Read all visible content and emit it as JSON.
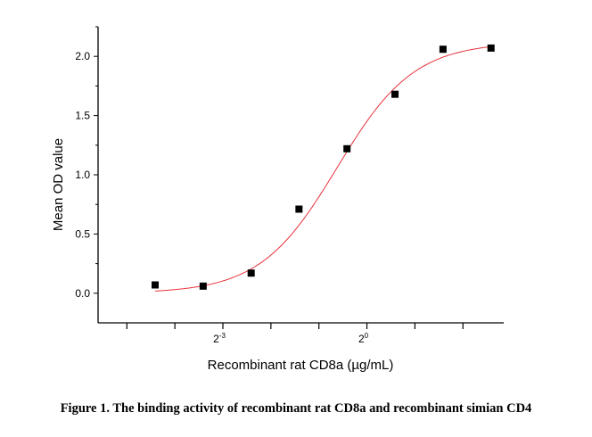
{
  "chart_data": {
    "type": "scatter",
    "title": "",
    "xlabel": "Recombinant rat CD8a (µg/mL)",
    "ylabel": "Mean OD value",
    "xscale": "log2",
    "xlim_log2": [
      -5.6,
      2.85
    ],
    "ylim": [
      -0.25,
      2.25
    ],
    "x_ticks_log2": [
      -5,
      -4,
      -3,
      -2,
      -1,
      0,
      1,
      2
    ],
    "x_tick_labels": [
      {
        "log2": -3,
        "base": "2",
        "exp": "-3"
      },
      {
        "log2": 0,
        "base": "2",
        "exp": "0"
      }
    ],
    "y_ticks": [
      0.0,
      0.5,
      1.0,
      1.5,
      2.0
    ],
    "y_tick_labels": [
      "0.0",
      "0.5",
      "1.0",
      "1.5",
      "2.0"
    ],
    "series": [
      {
        "name": "Mean OD",
        "marker": "square",
        "color": "#000000",
        "x": [
          0.047,
          0.094,
          0.188,
          0.375,
          0.75,
          1.5,
          3,
          6
        ],
        "y": [
          0.07,
          0.06,
          0.17,
          0.71,
          1.22,
          1.68,
          2.06,
          2.07
        ]
      }
    ],
    "fit": {
      "model": "4PL",
      "color": "#e8323c",
      "bottom": 0.0,
      "top": 2.12,
      "ec50": 0.65,
      "hill": 1.8,
      "x_range": [
        0.047,
        6
      ]
    },
    "grid": false
  },
  "caption": "Figure 1. The binding activity of recombinant rat CD8a and recombinant simian CD4"
}
